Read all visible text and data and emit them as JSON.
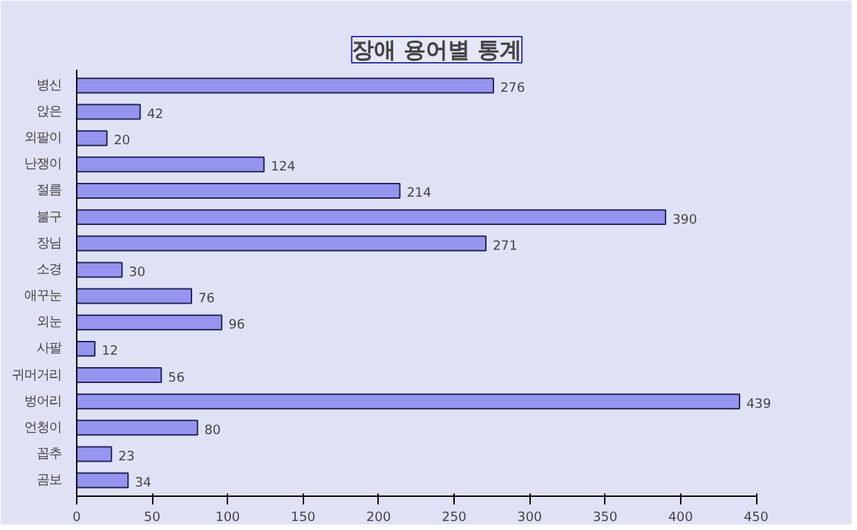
{
  "chart_data": {
    "type": "bar",
    "orientation": "horizontal",
    "title": "장애 용어별 통계",
    "categories": [
      "병신",
      "앉은",
      "외팔이",
      "난쟁이",
      "절름",
      "불구",
      "장님",
      "소경",
      "애꾸눈",
      "외눈",
      "사팔",
      "귀머거리",
      "벙어리",
      "언청이",
      "꼽추",
      "곰보"
    ],
    "values": [
      276,
      42,
      20,
      124,
      214,
      390,
      271,
      30,
      76,
      96,
      12,
      56,
      439,
      80,
      23,
      34
    ],
    "color": "#9595f0",
    "xlim": [
      0,
      450
    ],
    "xticks": [
      0,
      50,
      100,
      150,
      200,
      250,
      300,
      350,
      400,
      450
    ],
    "data_labels": true,
    "grid": false
  }
}
